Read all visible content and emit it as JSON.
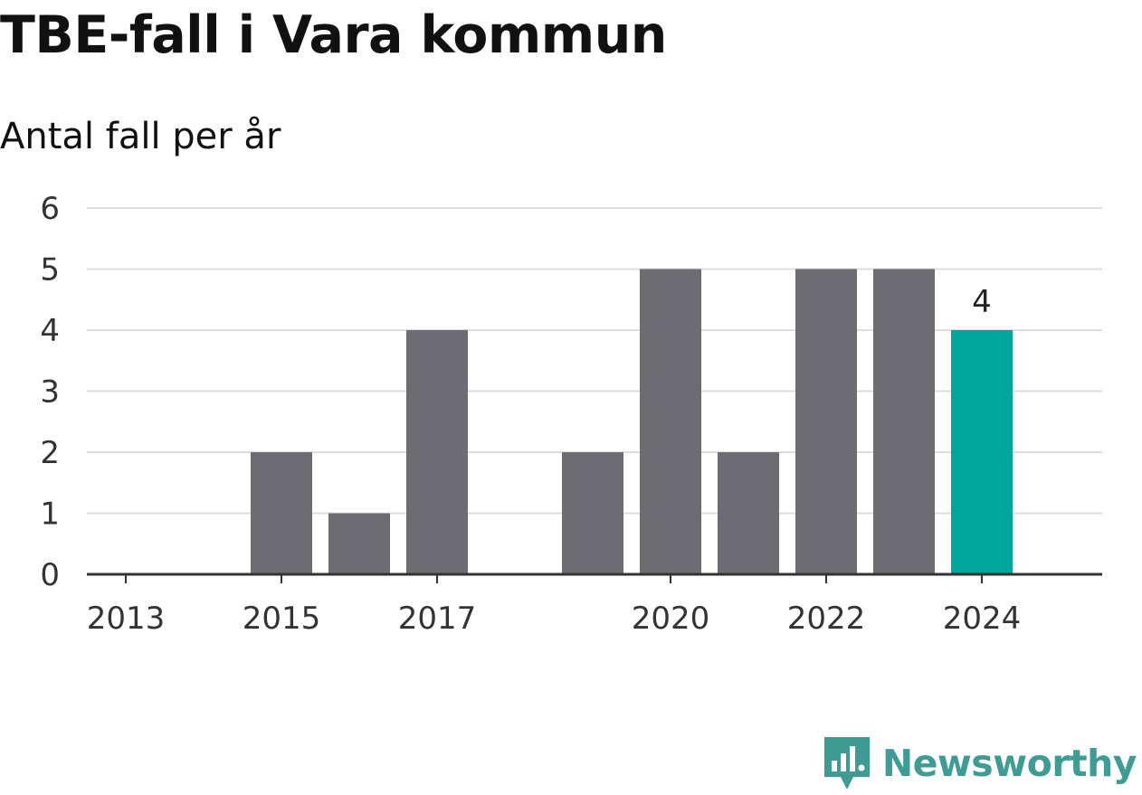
{
  "title": "TBE-fall i Vara kommun",
  "subtitle": "Antal fall per år",
  "brand": {
    "name": "Newsworthy",
    "logo_icon": "newsworthy-logo-icon",
    "color": "#3f9c95"
  },
  "colors": {
    "bar": "#6d6c72",
    "highlight": "#00a59b",
    "grid": "#dddddd",
    "axis": "#333333"
  },
  "chart_data": {
    "type": "bar",
    "title": "TBE-fall i Vara kommun",
    "subtitle": "Antal fall per år",
    "xlabel": "",
    "ylabel": "",
    "categories": [
      "2013",
      "2014",
      "2015",
      "2016",
      "2017",
      "2018",
      "2019",
      "2020",
      "2021",
      "2022",
      "2023",
      "2024"
    ],
    "x_tick_labels": [
      "2013",
      "2015",
      "2017",
      "2020",
      "2022",
      "2024"
    ],
    "y_ticks": [
      0,
      1,
      2,
      3,
      4,
      5,
      6
    ],
    "values": [
      0,
      0,
      2,
      1,
      4,
      0,
      2,
      5,
      2,
      5,
      5,
      4
    ],
    "ylim": [
      0,
      6
    ],
    "highlight_category": "2024",
    "data_labels": [
      {
        "category": "2024",
        "text": "4"
      }
    ],
    "grid": true,
    "legend": "none"
  }
}
